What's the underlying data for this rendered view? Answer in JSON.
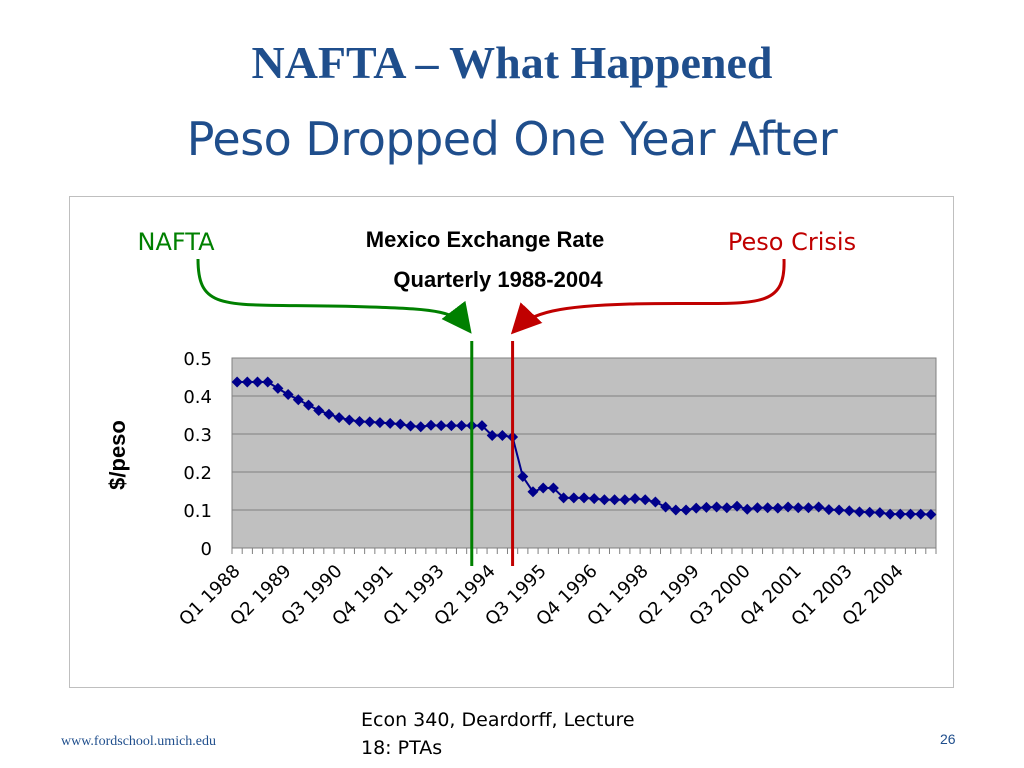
{
  "slide": {
    "title": "NAFTA – What Happened",
    "subtitle": "Peso Dropped One Year After",
    "footer_url": "www.fordschool.umich.edu",
    "footer_lecture": "Econ 340, Deardorff, Lecture 18: PTAs",
    "page_number": "26"
  },
  "annotations": {
    "nafta_label": "NAFTA",
    "crisis_label": "Peso Crisis",
    "nafta_color": "#008000",
    "crisis_color": "#c00000"
  },
  "chart_data": {
    "type": "line",
    "title": "Mexico Exchange Rate",
    "subtitle": "Quarterly 1988-2004",
    "xlabel": "",
    "ylabel": "$/peso",
    "ylim": [
      0,
      0.5
    ],
    "yticks": [
      "0",
      "0.1",
      "0.2",
      "0.3",
      "0.4",
      "0.5"
    ],
    "grid": true,
    "plot_background": "#c0c0c0",
    "series_color": "#00008b",
    "x_tick_labels": [
      "Q1 1988",
      "Q2 1989",
      "Q3 1990",
      "Q4 1991",
      "Q1 1993",
      "Q2 1994",
      "Q3 1995",
      "Q4 1996",
      "Q1 1998",
      "Q2 1999",
      "Q3 2000",
      "Q4 2001",
      "Q1 2003",
      "Q2 2004"
    ],
    "x_tick_label_every": 5,
    "nafta_marker_quarter": "Q1 1994",
    "crisis_marker_quarter": "Q1 1995",
    "series": [
      {
        "values": [
          0.437,
          0.437,
          0.437,
          0.437,
          0.42,
          0.404,
          0.39,
          0.376,
          0.362,
          0.352,
          0.343,
          0.337,
          0.333,
          0.332,
          0.33,
          0.328,
          0.326,
          0.321,
          0.319,
          0.323,
          0.322,
          0.322,
          0.322,
          0.322,
          0.322,
          0.296,
          0.296,
          0.292,
          0.188,
          0.148,
          0.158,
          0.158,
          0.132,
          0.132,
          0.132,
          0.13,
          0.127,
          0.127,
          0.127,
          0.13,
          0.127,
          0.121,
          0.108,
          0.1,
          0.1,
          0.105,
          0.107,
          0.108,
          0.106,
          0.11,
          0.102,
          0.106,
          0.106,
          0.105,
          0.108,
          0.106,
          0.106,
          0.108,
          0.101,
          0.1,
          0.098,
          0.095,
          0.094,
          0.093,
          0.089,
          0.089,
          0.089,
          0.089,
          0.088
        ]
      }
    ]
  }
}
